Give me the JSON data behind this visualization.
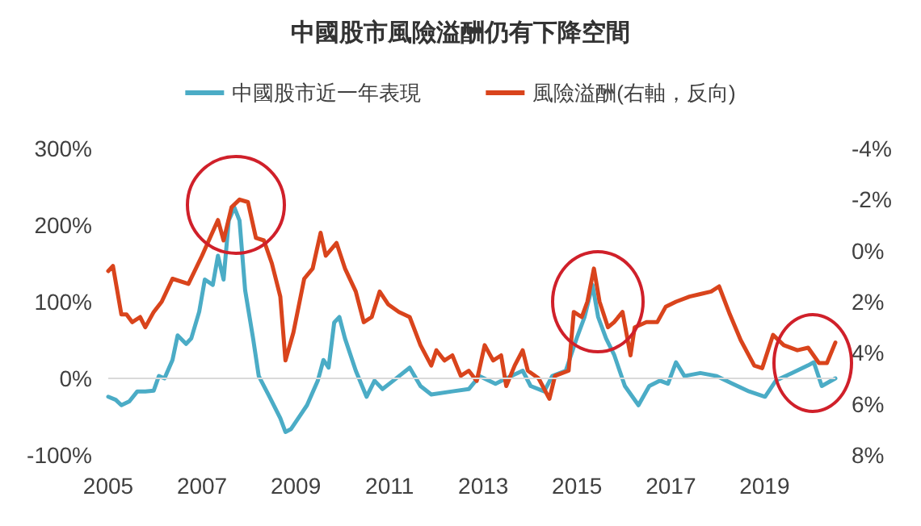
{
  "chart_data": {
    "type": "line",
    "title": "中國股市風險溢酬仍有下降空間",
    "legend": "top",
    "grid": false,
    "marker": "none",
    "line_style": "solid",
    "xlim": [
      2005,
      2020.51
    ],
    "xticks": [
      2005,
      2007,
      2009,
      2011,
      2013,
      2015,
      2017,
      2019
    ],
    "ylim": [
      -100,
      300
    ],
    "yticks": [
      {
        "value": -100,
        "label": "-100%"
      },
      {
        "value": 0,
        "label": "0%"
      },
      {
        "value": 100,
        "label": "100%"
      },
      {
        "value": 200,
        "label": "200%"
      },
      {
        "value": 300,
        "label": "300%"
      }
    ],
    "y2lim": [
      8,
      -4
    ],
    "y2ticks": [
      {
        "value": -4,
        "label": "-4%"
      },
      {
        "value": -2,
        "label": "-2%"
      },
      {
        "value": 0,
        "label": "0%"
      },
      {
        "value": 2,
        "label": "2%"
      },
      {
        "value": 4,
        "label": "4%"
      },
      {
        "value": 6,
        "label": "6%"
      },
      {
        "value": 8,
        "label": "8%"
      }
    ],
    "ref_lines": [
      {
        "axis": "y",
        "value": 0,
        "color": "#d9d9d9"
      }
    ],
    "series": [
      {
        "name": "中國股市近一年表現",
        "color": "#4bacc6",
        "x": [
          2005.0,
          2005.16,
          2005.28,
          2005.45,
          2005.62,
          2005.79,
          2005.97,
          2006.08,
          2006.2,
          2006.37,
          2006.48,
          2006.66,
          2006.77,
          2006.94,
          2007.06,
          2007.23,
          2007.34,
          2007.46,
          2007.57,
          2007.69,
          2007.8,
          2007.92,
          2008.09,
          2008.21,
          2008.44,
          2008.67,
          2008.78,
          2008.9,
          2009.01,
          2009.24,
          2009.47,
          2009.59,
          2009.7,
          2009.82,
          2009.93,
          2010.05,
          2010.28,
          2010.51,
          2010.68,
          2010.85,
          2011.08,
          2011.43,
          2011.66,
          2011.89,
          2012.34,
          2012.69,
          2012.92,
          2013.26,
          2013.49,
          2013.84,
          2014.01,
          2014.3,
          2014.47,
          2014.76,
          2014.99,
          2015.16,
          2015.33,
          2015.45,
          2015.62,
          2015.79,
          2016.02,
          2016.31,
          2016.54,
          2016.77,
          2016.94,
          2017.11,
          2017.29,
          2017.63,
          2017.98,
          2018.32,
          2018.67,
          2019.01,
          2019.24,
          2019.59,
          2019.93,
          2020.05,
          2020.22,
          2020.51
        ],
        "values": [
          -24,
          -28,
          -35,
          -30,
          -17,
          -17,
          -16,
          3,
          0,
          24,
          56,
          45,
          52,
          87,
          129,
          122,
          160,
          129,
          206,
          223,
          206,
          115,
          52,
          3,
          -24,
          -52,
          -70,
          -66,
          -56,
          -35,
          -3,
          24,
          14,
          73,
          80,
          52,
          10,
          -24,
          -3,
          -14,
          -3,
          14,
          -10,
          -21,
          -17,
          -14,
          3,
          -7,
          0,
          10,
          -10,
          -17,
          3,
          10,
          52,
          80,
          122,
          80,
          52,
          31,
          -10,
          -35,
          -10,
          -3,
          -7,
          21,
          3,
          7,
          3,
          -7,
          -17,
          -24,
          -3,
          7,
          17,
          21,
          -10,
          0
        ]
      },
      {
        "name": "風險溢酬(右軸，反向)",
        "color": "#d9441c",
        "axis": "y2",
        "x": [
          2005.0,
          2005.1,
          2005.28,
          2005.39,
          2005.51,
          2005.68,
          2005.79,
          2005.97,
          2006.14,
          2006.37,
          2006.71,
          2007.0,
          2007.34,
          2007.46,
          2007.63,
          2007.8,
          2007.98,
          2008.15,
          2008.32,
          2008.49,
          2008.67,
          2008.78,
          2008.95,
          2009.18,
          2009.36,
          2009.53,
          2009.64,
          2009.87,
          2010.05,
          2010.28,
          2010.45,
          2010.62,
          2010.79,
          2010.97,
          2011.2,
          2011.43,
          2011.66,
          2011.89,
          2012.0,
          2012.17,
          2012.34,
          2012.52,
          2012.69,
          2012.86,
          2013.03,
          2013.21,
          2013.38,
          2013.49,
          2013.67,
          2013.84,
          2013.95,
          2014.18,
          2014.41,
          2014.53,
          2014.82,
          2014.93,
          2015.1,
          2015.22,
          2015.36,
          2015.48,
          2015.66,
          2015.79,
          2015.97,
          2016.14,
          2016.23,
          2016.48,
          2016.71,
          2016.89,
          2017.11,
          2017.4,
          2017.63,
          2017.86,
          2018.03,
          2018.26,
          2018.49,
          2018.78,
          2018.95,
          2019.18,
          2019.41,
          2019.7,
          2019.93,
          2020.16,
          2020.33,
          2020.51
        ],
        "values": [
          0.8,
          0.6,
          2.5,
          2.5,
          2.8,
          2.6,
          3.0,
          2.4,
          2.0,
          1.1,
          1.3,
          0.2,
          -1.2,
          -0.4,
          -1.7,
          -2.0,
          -1.9,
          -0.5,
          -0.4,
          0.5,
          1.8,
          4.3,
          3.2,
          1.1,
          0.7,
          -0.7,
          0.2,
          -0.3,
          0.7,
          1.6,
          2.8,
          2.6,
          1.6,
          2.1,
          2.4,
          2.6,
          3.7,
          4.5,
          3.9,
          4.3,
          4.1,
          4.9,
          4.7,
          5.1,
          3.7,
          4.3,
          4.1,
          5.3,
          4.5,
          3.9,
          4.7,
          5.0,
          5.8,
          4.9,
          4.7,
          2.4,
          2.6,
          2.0,
          0.7,
          2.0,
          3.0,
          2.8,
          2.4,
          4.1,
          3.0,
          2.8,
          2.8,
          2.2,
          2.0,
          1.8,
          1.7,
          1.6,
          1.4,
          2.5,
          3.5,
          4.5,
          4.6,
          3.3,
          3.7,
          3.9,
          3.8,
          4.4,
          4.4,
          3.6
        ]
      }
    ]
  }
}
